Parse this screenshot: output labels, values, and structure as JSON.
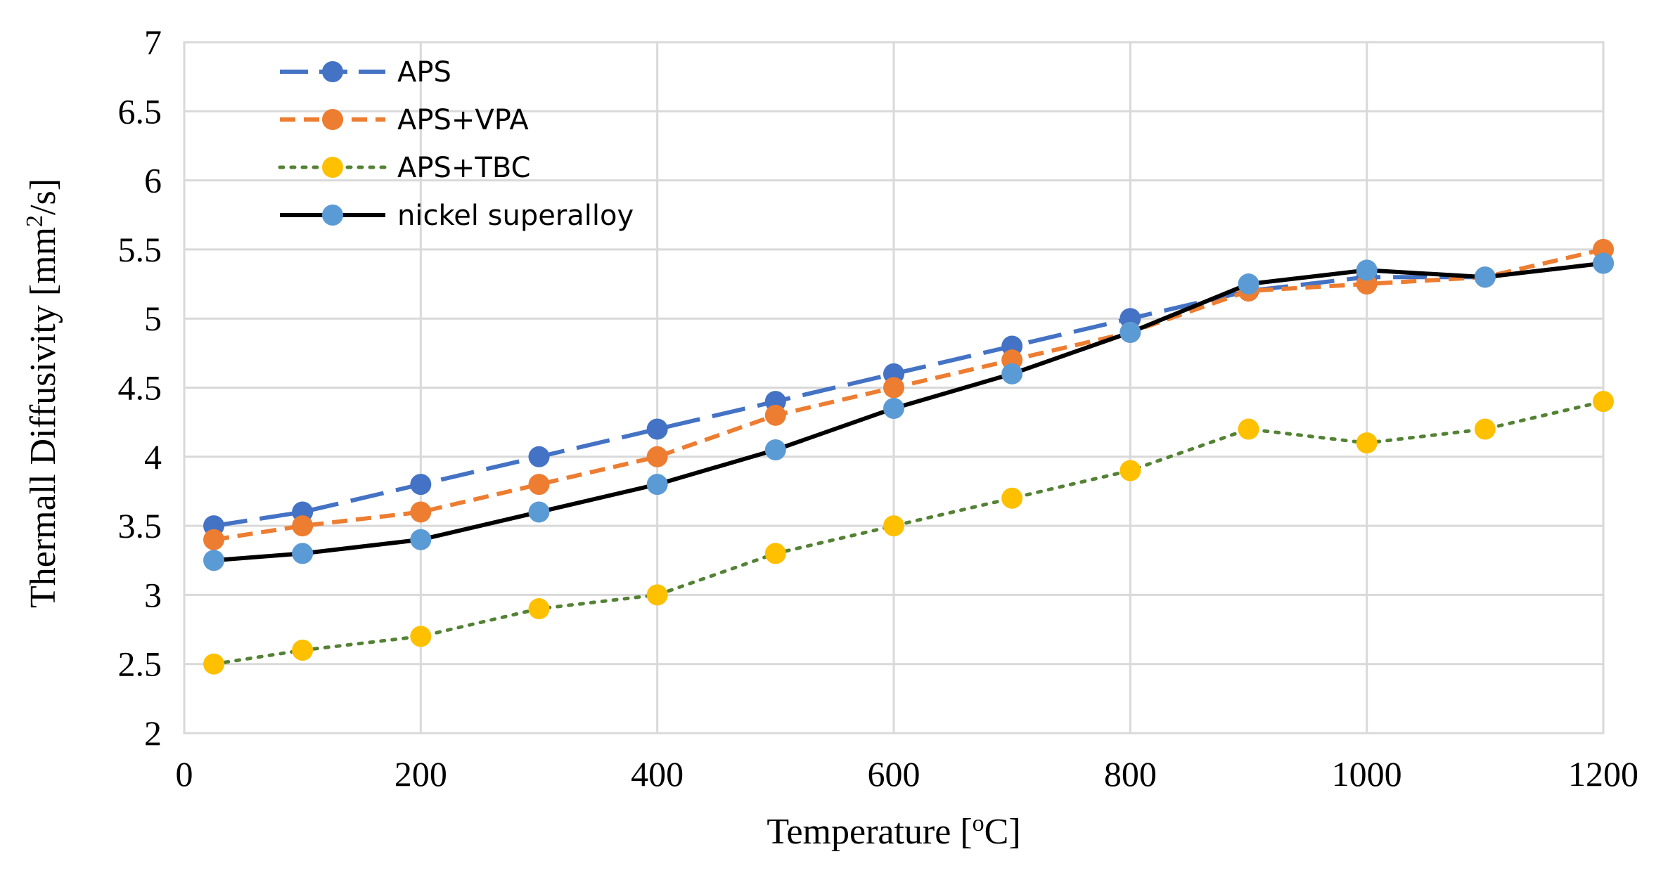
{
  "chart_data": {
    "type": "line",
    "xlabel": {
      "pre": "Temperature [",
      "sup": "o",
      "post": "C]"
    },
    "ylabel": {
      "pre": "Thermall Diffusivity [mm",
      "sup": "2",
      "post": "/s]"
    },
    "xlim": [
      0,
      1200
    ],
    "ylim": [
      2,
      7
    ],
    "x_ticks": [
      "0",
      "200",
      "400",
      "600",
      "800",
      "1000",
      "1200"
    ],
    "y_ticks": [
      "2",
      "2.5",
      "3",
      "3.5",
      "4",
      "4.5",
      "5",
      "5.5",
      "6",
      "6.5",
      "7"
    ],
    "x_gridlines": [
      0,
      200,
      400,
      600,
      800,
      1000,
      1200
    ],
    "y_gridlines": [
      2,
      2.5,
      3,
      3.5,
      4,
      4.5,
      5,
      5.5,
      6,
      6.5,
      7
    ],
    "grid": true,
    "legend_position": "top-left",
    "x": [
      25,
      100,
      200,
      300,
      400,
      500,
      600,
      700,
      800,
      900,
      1000,
      1100,
      1200
    ],
    "series": [
      {
        "name": "APS",
        "line_color": "#4472C4",
        "marker_color": "#4472C4",
        "dash": "long-dash",
        "values": [
          3.5,
          3.6,
          3.8,
          4.0,
          4.2,
          4.4,
          4.6,
          4.8,
          5.0,
          5.2,
          5.3,
          5.3,
          5.4
        ]
      },
      {
        "name": "APS+VPA",
        "line_color": "#ED7D31",
        "marker_color": "#ED7D31",
        "dash": "short-dash",
        "values": [
          3.4,
          3.5,
          3.6,
          3.8,
          4.0,
          4.3,
          4.5,
          4.7,
          4.9,
          5.2,
          5.25,
          5.3,
          5.5
        ]
      },
      {
        "name": "APS+TBC",
        "line_color": "#548235",
        "marker_color": "#FFC000",
        "dash": "dotted",
        "values": [
          2.5,
          2.6,
          2.7,
          2.9,
          3.0,
          3.3,
          3.5,
          3.7,
          3.9,
          4.2,
          4.1,
          4.2,
          4.4
        ]
      },
      {
        "name": "nickel superalloy",
        "line_color": "#000000",
        "marker_color": "#5B9BD5",
        "dash": "solid",
        "values": [
          3.25,
          3.3,
          3.4,
          3.6,
          3.8,
          4.05,
          4.35,
          4.6,
          4.9,
          5.25,
          5.35,
          5.3,
          5.4
        ]
      }
    ]
  }
}
